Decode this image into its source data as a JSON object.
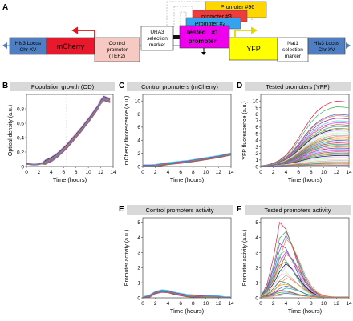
{
  "figure": {
    "panel_a": {
      "letter": "A",
      "his3_left": [
        "His3 Locus",
        "Chr XV"
      ],
      "mcherry": "mCherry",
      "control_promoter": [
        "Control",
        "promoter",
        "(TEF2)"
      ],
      "ura3": [
        "URA3",
        "selection",
        "marker"
      ],
      "tested_promoter": [
        "Tested",
        "promoter",
        "#1"
      ],
      "promoter_stack": [
        "Promoter #96",
        "promoter #3",
        "Promoter #2"
      ],
      "yfp": "YFP",
      "nat1": [
        "Nat1",
        "selection",
        "marker"
      ],
      "his3_right": [
        "His3 Locus",
        "Chr XV"
      ],
      "colors": {
        "his3": "#4f7fc2",
        "mcherry": "#e8192c",
        "control": "#f6c9c2",
        "ura3": "#ffffff",
        "tested": "#ef00ef",
        "yfp": "#ffff00",
        "nat1": "#ffffff",
        "promoter96": "#ffd700",
        "promoter3": "#ef3b3b",
        "promoter2": "#33a3f0",
        "arrow_red": "#d71920",
        "arrow_yellow": "#e0d800"
      }
    },
    "panels": [
      {
        "id": "B",
        "title": "Population growth (OD)",
        "ylabel": "Optical density (a.u.)",
        "xlabel": "Time (hours)",
        "xticks": [
          "0",
          "2",
          "4",
          "6",
          "8",
          "10",
          "12",
          "14"
        ],
        "yticks": [
          "0",
          "0.2",
          "0.4",
          "0.6",
          "0.8"
        ]
      },
      {
        "id": "C",
        "title": "Control promoters (mCherry)",
        "ylabel": "mCherry fluorescence (a.u.)",
        "xlabel": "Time (hours)",
        "xticks": [
          "0",
          "2",
          "4",
          "6",
          "8",
          "10",
          "12",
          "14"
        ],
        "yticks": [
          "0",
          "2",
          "4",
          "6",
          "8",
          "10"
        ]
      },
      {
        "id": "D",
        "title": "Tested promoters (YFP)",
        "ylabel": "YFP fluorescence (a.u.)",
        "xlabel": "Time (hours)",
        "xticks": [
          "0",
          "2",
          "4",
          "6",
          "8",
          "10",
          "12",
          "14"
        ],
        "yticks": [
          "0",
          "1",
          "2",
          "3",
          "4",
          "5",
          "6",
          "7",
          "8",
          "9",
          "10"
        ]
      },
      {
        "id": "E",
        "title": "Control promoters activity",
        "ylabel": "Promoter activity (a.u.)",
        "xlabel": "Time (hours)",
        "xticks": [
          "0",
          "2",
          "4",
          "6",
          "8",
          "10",
          "12",
          "14"
        ],
        "yticks": [
          "0",
          "1",
          "2",
          "3",
          "4",
          "5"
        ]
      },
      {
        "id": "F",
        "title": "Tested promoters activity",
        "ylabel": "Promoter activity (a.u.)",
        "xlabel": "Time (hours)",
        "xticks": [
          "0",
          "2",
          "4",
          "6",
          "8",
          "10",
          "12",
          "14"
        ],
        "yticks": [
          "0",
          "1",
          "2",
          "3",
          "4",
          "5"
        ]
      }
    ],
    "palette": [
      "#e6194b",
      "#3cb44b",
      "#4363d8",
      "#f58231",
      "#911eb4",
      "#42d4f4",
      "#f032e6",
      "#9a6324",
      "#469990",
      "#808000",
      "#000075",
      "#e6beff",
      "#aaffc3",
      "#ffd8b1",
      "#a9a9a9",
      "#ff7f50",
      "#2e8b57",
      "#daa520",
      "#6a5acd",
      "#20b2aa"
    ]
  },
  "chart_data": [
    {
      "panel": "B",
      "type": "line",
      "title": "Population growth (OD)",
      "xlabel": "Time (hours)",
      "ylabel": "Optical density (a.u.)",
      "xlim": [
        0,
        14
      ],
      "ylim": [
        0,
        1.0
      ],
      "grid": false,
      "vlines": [
        2,
        6.5
      ],
      "x": [
        0,
        0.5,
        1,
        1.5,
        2,
        2.5,
        3,
        3.5,
        4,
        4.5,
        5,
        5.5,
        6,
        6.5,
        7,
        7.5,
        8,
        8.5,
        9,
        9.5,
        10,
        10.5,
        11,
        11.5,
        12,
        12.5,
        13,
        13.5
      ],
      "series": [
        {
          "values": [
            0.04,
            0.035,
            0.03,
            0.03,
            0.035,
            0.045,
            0.06,
            0.08,
            0.1,
            0.13,
            0.16,
            0.2,
            0.24,
            0.28,
            0.33,
            0.38,
            0.43,
            0.48,
            0.53,
            0.59,
            0.64,
            0.7,
            0.76,
            0.82,
            0.9,
            0.95,
            0.93,
            0.92
          ],
          "count": 12
        }
      ]
    },
    {
      "panel": "C",
      "type": "line",
      "title": "Control promoters (mCherry)",
      "xlabel": "Time (hours)",
      "ylabel": "mCherry fluorescence (a.u.)",
      "xlim": [
        0,
        14
      ],
      "ylim": [
        0,
        11
      ],
      "grid": false,
      "x": [
        0,
        1,
        2,
        3,
        4,
        5,
        6,
        7,
        8,
        9,
        10,
        11,
        12,
        13,
        14
      ],
      "series": [
        {
          "values": [
            0.1,
            0.1,
            0.15,
            0.3,
            0.45,
            0.55,
            0.65,
            0.75,
            0.9,
            1.05,
            1.2,
            1.35,
            1.5,
            1.7,
            1.9
          ],
          "count": 6
        }
      ]
    },
    {
      "panel": "D",
      "type": "line",
      "title": "Tested promoters (YFP)",
      "xlabel": "Time (hours)",
      "ylabel": "YFP fluorescence (a.u.)",
      "xlim": [
        0,
        14
      ],
      "ylim": [
        0,
        11
      ],
      "grid": false,
      "x": [
        0,
        1,
        2,
        3,
        4,
        5,
        6,
        7,
        8,
        9,
        10,
        11,
        12,
        13,
        14
      ],
      "series_final_values": [
        10.3,
        9.4,
        8.2,
        8.0,
        7.6,
        7.2,
        6.9,
        6.6,
        6.3,
        6.0,
        5.8,
        5.6,
        5.3,
        5.1,
        4.9,
        4.7,
        4.5,
        4.3,
        4.1,
        3.9,
        3.7,
        3.5,
        3.3,
        3.1,
        2.9,
        2.7,
        2.5,
        2.3,
        2.1,
        1.9,
        1.7,
        1.5,
        1.3,
        1.1,
        0.9,
        0.7,
        0.5,
        0.35,
        0.2
      ]
    },
    {
      "panel": "E",
      "type": "line",
      "title": "Control promoters activity",
      "xlabel": "Time (hours)",
      "ylabel": "Promoter activity (a.u.)",
      "xlim": [
        0,
        14
      ],
      "ylim": [
        0,
        5.3
      ],
      "grid": false,
      "x": [
        0,
        1,
        2,
        3,
        4,
        5,
        6,
        7,
        8,
        9,
        10,
        11,
        12,
        13,
        14
      ],
      "series": [
        {
          "values": [
            0.05,
            0.1,
            0.35,
            0.45,
            0.42,
            0.3,
            0.22,
            0.15,
            0.12,
            0.1,
            0.08,
            0.07,
            0.06,
            0.05,
            0.05
          ],
          "count": 6
        }
      ]
    },
    {
      "panel": "F",
      "type": "line",
      "title": "Tested promoters activity",
      "xlabel": "Time (hours)",
      "ylabel": "Promoter activity (a.u.)",
      "xlim": [
        0,
        14
      ],
      "ylim": [
        0,
        5.3
      ],
      "grid": false,
      "x": [
        0,
        1,
        2,
        3,
        4,
        5,
        6,
        7,
        8,
        9,
        10,
        11,
        12,
        13,
        14
      ],
      "series_peak_values": [
        5.0,
        4.6,
        4.2,
        3.9,
        3.6,
        3.3,
        3.1,
        2.9,
        2.7,
        2.5,
        2.3,
        2.1,
        1.9,
        1.7,
        1.5,
        1.3,
        1.1,
        0.95,
        0.8,
        0.65,
        0.5,
        0.4,
        0.3,
        0.2
      ]
    }
  ]
}
